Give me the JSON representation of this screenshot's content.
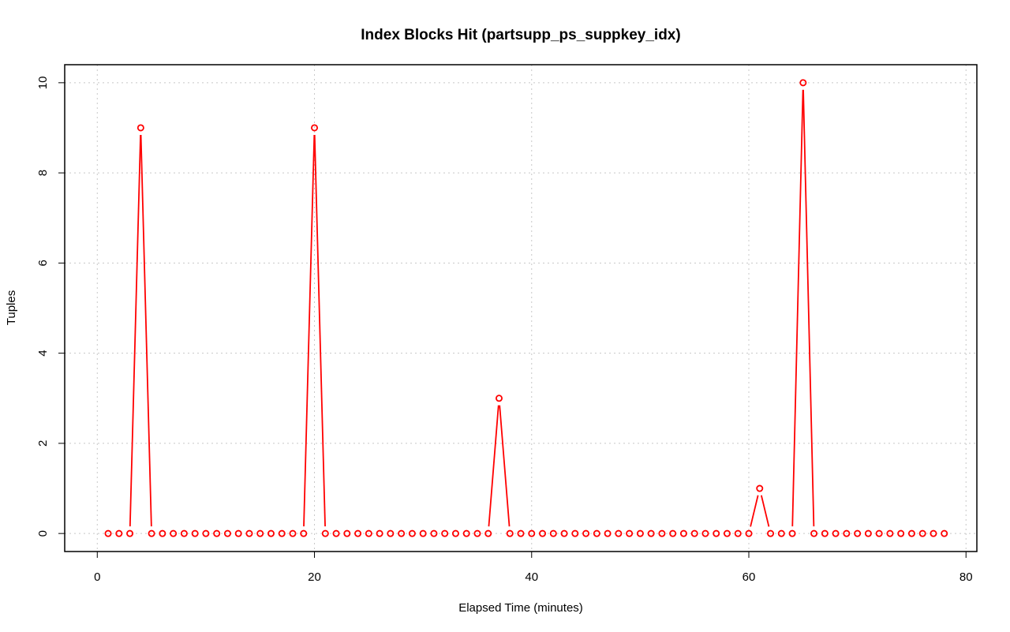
{
  "chart_data": {
    "type": "line",
    "title": "Index Blocks Hit (partsupp_ps_suppkey_idx)",
    "xlabel": "Elapsed Time (minutes)",
    "ylabel": "Tuples",
    "xlim": [
      -3,
      81
    ],
    "ylim": [
      -0.4,
      10.4
    ],
    "xticks": [
      0,
      20,
      40,
      60,
      80
    ],
    "yticks": [
      0,
      2,
      4,
      6,
      8,
      10
    ],
    "grid": true,
    "series_color": "#ff0000",
    "x": [
      1,
      2,
      3,
      4,
      5,
      6,
      7,
      8,
      9,
      10,
      11,
      12,
      13,
      14,
      15,
      16,
      17,
      18,
      19,
      20,
      21,
      22,
      23,
      24,
      25,
      26,
      27,
      28,
      29,
      30,
      31,
      32,
      33,
      34,
      35,
      36,
      37,
      38,
      39,
      40,
      41,
      42,
      43,
      44,
      45,
      46,
      47,
      48,
      49,
      50,
      51,
      52,
      53,
      54,
      55,
      56,
      57,
      58,
      59,
      60,
      61,
      62,
      63,
      64,
      65,
      66,
      67,
      68,
      69,
      70,
      71,
      72,
      73,
      74,
      75,
      76,
      77,
      78
    ],
    "values": [
      0,
      0,
      0,
      9,
      0,
      0,
      0,
      0,
      0,
      0,
      0,
      0,
      0,
      0,
      0,
      0,
      0,
      0,
      0,
      9,
      0,
      0,
      0,
      0,
      0,
      0,
      0,
      0,
      0,
      0,
      0,
      0,
      0,
      0,
      0,
      0,
      3,
      0,
      0,
      0,
      0,
      0,
      0,
      0,
      0,
      0,
      0,
      0,
      0,
      0,
      0,
      0,
      0,
      0,
      0,
      0,
      0,
      0,
      0,
      0,
      1,
      0,
      0,
      0,
      10,
      0,
      0,
      0,
      0,
      0,
      0,
      0,
      0,
      0,
      0,
      0,
      0,
      0
    ]
  }
}
